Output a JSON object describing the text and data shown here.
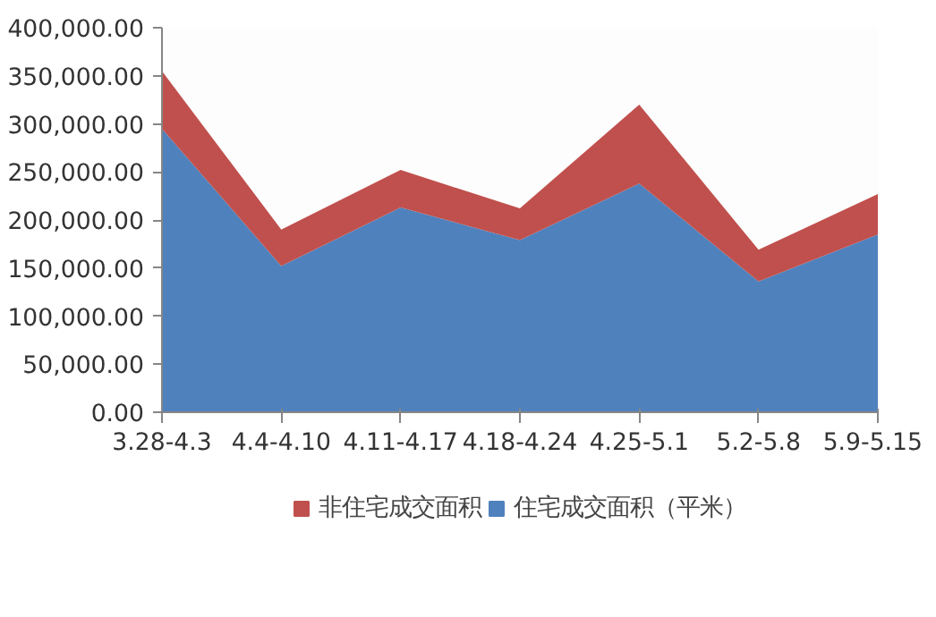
{
  "chart_data": {
    "type": "area",
    "stacked": true,
    "categories": [
      "3.28-4.3",
      "4.4-4.10",
      "4.11-4.17",
      "4.18-4.24",
      "4.25-5.1",
      "5.2-5.8",
      "5.9-5.15"
    ],
    "series": [
      {
        "name": "住宅成交面积（平米）",
        "color": "#4f81bd",
        "values": [
          295000,
          152000,
          213000,
          179000,
          238000,
          136000,
          185000
        ]
      },
      {
        "name": "非住宅成交面积",
        "color": "#c0504d",
        "values": [
          60000,
          38000,
          39000,
          33000,
          82000,
          33000,
          42000
        ]
      }
    ],
    "ylim": [
      0,
      400000
    ],
    "yticks": [
      {
        "value": 0,
        "label": "0.00"
      },
      {
        "value": 50000,
        "label": "50,000.00"
      },
      {
        "value": 100000,
        "label": "100,000.00"
      },
      {
        "value": 150000,
        "label": "150,000.00"
      },
      {
        "value": 200000,
        "label": "200,000.00"
      },
      {
        "value": 250000,
        "label": "250,000.00"
      },
      {
        "value": 300000,
        "label": "300,000.00"
      },
      {
        "value": 350000,
        "label": "350,000.00"
      },
      {
        "value": 400000,
        "label": "400,000.00"
      }
    ],
    "grid": false,
    "legend": "bottom"
  }
}
